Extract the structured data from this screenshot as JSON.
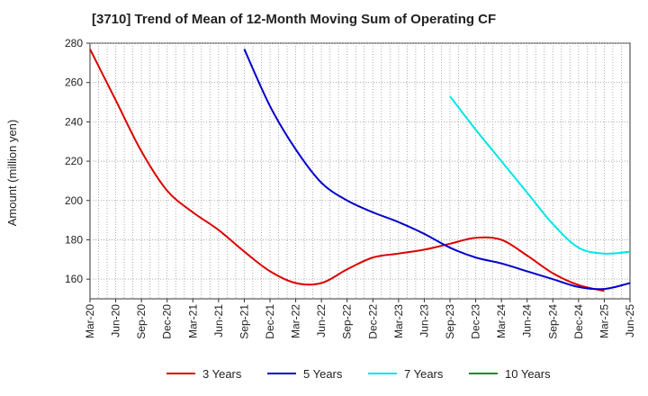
{
  "chart_data": {
    "type": "line",
    "title": "[3710]  Trend of Mean of 12-Month Moving Sum of Operating CF",
    "xlabel": "",
    "ylabel": "Amount (million yen)",
    "ylim": [
      150,
      280
    ],
    "yticks": [
      160,
      180,
      200,
      220,
      240,
      260,
      280
    ],
    "xticks": [
      "Mar-20",
      "Jun-20",
      "Sep-20",
      "Dec-20",
      "Mar-21",
      "Jun-21",
      "Sep-21",
      "Dec-21",
      "Mar-22",
      "Jun-22",
      "Sep-22",
      "Dec-22",
      "Mar-23",
      "Jun-23",
      "Sep-23",
      "Dec-23",
      "Mar-24",
      "Jun-24",
      "Sep-24",
      "Dec-24",
      "Mar-25",
      "Jun-25"
    ],
    "x_range_months": [
      0,
      63
    ],
    "grid": true,
    "legend_position": "bottom",
    "series": [
      {
        "name": "3 Years",
        "color": "#dd0000",
        "x": [
          0,
          3,
          6,
          9,
          12,
          15,
          18,
          21,
          24,
          27,
          30,
          33,
          36,
          39,
          42,
          45,
          48,
          51,
          54,
          57,
          60
        ],
        "values": [
          277,
          251,
          225,
          205,
          194,
          185,
          174,
          164,
          158,
          158,
          165,
          171,
          173,
          175,
          178,
          181,
          180,
          172,
          163,
          157,
          154
        ]
      },
      {
        "name": "5 Years",
        "color": "#0000cc",
        "x": [
          18,
          21,
          24,
          27,
          30,
          33,
          36,
          39,
          42,
          45,
          48,
          51,
          54,
          57,
          60,
          63
        ],
        "values": [
          277,
          248,
          226,
          209,
          200,
          194,
          189,
          183,
          176,
          171,
          168,
          164,
          160,
          156,
          155,
          158
        ]
      },
      {
        "name": "7 Years",
        "color": "#00e5e5",
        "x": [
          42,
          45,
          48,
          51,
          54,
          57,
          60,
          63
        ],
        "values": [
          253,
          236,
          220,
          204,
          188,
          176,
          173,
          174
        ]
      },
      {
        "name": "10 Years",
        "color": "#228b22",
        "x": [],
        "values": []
      }
    ]
  }
}
